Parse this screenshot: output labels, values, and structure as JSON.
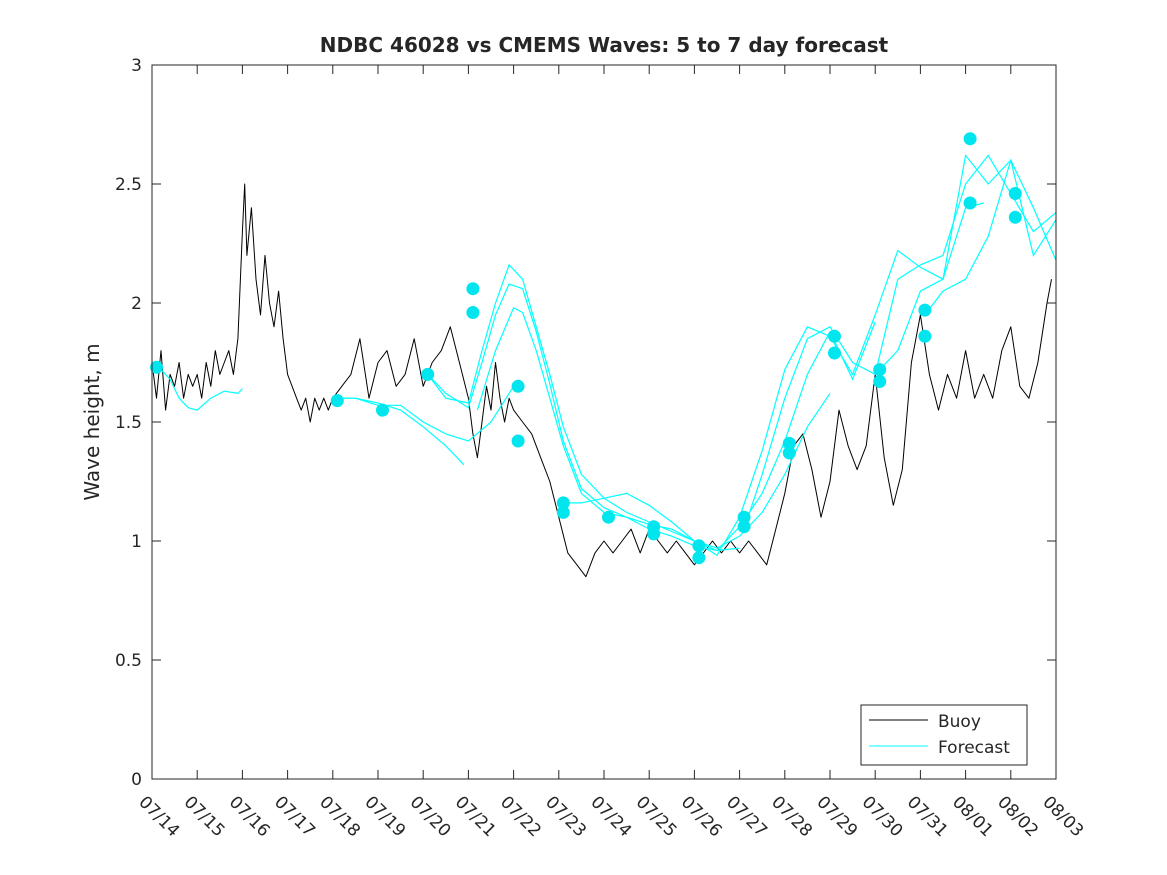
{
  "chart_data": {
    "type": "line",
    "title": "NDBC 46028 vs CMEMS Waves: 5 to 7 day forecast",
    "xlabel": "",
    "ylabel": "Wave height, m",
    "ylim": [
      0,
      3
    ],
    "xlim": [
      "07/14",
      "08/03"
    ],
    "grid": false,
    "legend_position": "bottom-right",
    "x_ticks": [
      "07/14",
      "07/15",
      "07/16",
      "07/17",
      "07/18",
      "07/19",
      "07/20",
      "07/21",
      "07/22",
      "07/23",
      "07/24",
      "07/25",
      "07/26",
      "07/27",
      "07/28",
      "07/29",
      "07/30",
      "07/31",
      "08/01",
      "08/02",
      "08/03"
    ],
    "y_ticks": [
      "0",
      "0.5",
      "1",
      "1.5",
      "2",
      "2.5",
      "3"
    ],
    "colors": {
      "buoy": "#000000",
      "forecast": "#00ffff",
      "marker": "#00e5ee"
    },
    "series": [
      {
        "name": "Buoy",
        "x_day": [
          0.0,
          0.1,
          0.2,
          0.3,
          0.4,
          0.5,
          0.6,
          0.7,
          0.8,
          0.9,
          1.0,
          1.1,
          1.2,
          1.3,
          1.4,
          1.5,
          1.6,
          1.7,
          1.8,
          1.9,
          2.0,
          2.05,
          2.1,
          2.2,
          2.3,
          2.4,
          2.5,
          2.6,
          2.7,
          2.8,
          2.9,
          3.0,
          3.1,
          3.2,
          3.3,
          3.4,
          3.5,
          3.6,
          3.7,
          3.8,
          3.9,
          4.0,
          4.2,
          4.4,
          4.6,
          4.8,
          5.0,
          5.2,
          5.4,
          5.6,
          5.8,
          6.0,
          6.2,
          6.4,
          6.6,
          6.8,
          7.0,
          7.1,
          7.2,
          7.3,
          7.4,
          7.5,
          7.6,
          7.7,
          7.8,
          7.9,
          8.0,
          8.2,
          8.4,
          8.6,
          8.8,
          9.0,
          9.2,
          9.4,
          9.6,
          9.8,
          10.0,
          10.2,
          10.4,
          10.6,
          10.8,
          11.0,
          11.2,
          11.4,
          11.6,
          11.8,
          12.0,
          12.2,
          12.4,
          12.6,
          12.8,
          13.0,
          13.2,
          13.4,
          13.6,
          13.8,
          14.0,
          14.2,
          14.4,
          14.6,
          14.8,
          15.0,
          15.2,
          15.4,
          15.6,
          15.8,
          16.0,
          16.2,
          16.4,
          16.6,
          16.8,
          17.0,
          17.2,
          17.4,
          17.6,
          17.8,
          18.0,
          18.2,
          18.4,
          18.6,
          18.8,
          19.0,
          19.2,
          19.4,
          19.6,
          19.8,
          19.9
        ],
        "values": [
          1.75,
          1.6,
          1.8,
          1.55,
          1.7,
          1.65,
          1.75,
          1.6,
          1.7,
          1.65,
          1.7,
          1.6,
          1.75,
          1.65,
          1.8,
          1.7,
          1.75,
          1.8,
          1.7,
          1.85,
          2.3,
          2.5,
          2.2,
          2.4,
          2.1,
          1.95,
          2.2,
          2.0,
          1.9,
          2.05,
          1.85,
          1.7,
          1.65,
          1.6,
          1.55,
          1.6,
          1.5,
          1.6,
          1.55,
          1.6,
          1.55,
          1.6,
          1.65,
          1.7,
          1.85,
          1.6,
          1.75,
          1.8,
          1.65,
          1.7,
          1.85,
          1.65,
          1.75,
          1.8,
          1.9,
          1.75,
          1.6,
          1.45,
          1.35,
          1.5,
          1.65,
          1.55,
          1.75,
          1.6,
          1.5,
          1.6,
          1.55,
          1.5,
          1.45,
          1.35,
          1.25,
          1.1,
          0.95,
          0.9,
          0.85,
          0.95,
          1.0,
          0.95,
          1.0,
          1.05,
          0.95,
          1.05,
          1.0,
          0.95,
          1.0,
          0.95,
          0.9,
          0.95,
          1.0,
          0.95,
          1.0,
          0.95,
          1.0,
          0.95,
          0.9,
          1.05,
          1.2,
          1.4,
          1.45,
          1.3,
          1.1,
          1.25,
          1.55,
          1.4,
          1.3,
          1.4,
          1.7,
          1.35,
          1.15,
          1.3,
          1.75,
          1.95,
          1.7,
          1.55,
          1.7,
          1.6,
          1.8,
          1.6,
          1.7,
          1.6,
          1.8,
          1.9,
          1.65,
          1.6,
          1.75,
          2.0,
          2.1
        ]
      },
      {
        "name": "Forecast",
        "segments": [
          {
            "x_day": [
              0.0,
              0.2,
              0.4,
              0.6,
              0.8,
              1.0,
              1.3,
              1.6,
              1.9,
              2.0
            ],
            "values": [
              1.73,
              1.72,
              1.68,
              1.6,
              1.56,
              1.55,
              1.6,
              1.63,
              1.62,
              1.64
            ]
          },
          {
            "x_day": [
              4.1,
              4.5,
              5.0,
              5.5,
              6.0,
              6.5,
              6.9
            ],
            "values": [
              1.6,
              1.6,
              1.58,
              1.55,
              1.48,
              1.4,
              1.32
            ]
          },
          {
            "x_day": [
              4.1,
              4.5,
              5.0,
              5.5,
              6.0,
              6.5,
              7.0,
              7.5,
              8.0
            ],
            "values": [
              1.6,
              1.6,
              1.57,
              1.57,
              1.5,
              1.45,
              1.42,
              1.5,
              1.65
            ]
          },
          {
            "x_day": [
              6.1,
              6.5,
              7.0,
              7.3,
              7.6,
              7.9,
              8.2,
              8.5,
              8.8,
              9.1,
              9.5,
              10.0,
              10.5,
              11.0,
              11.5,
              12.0,
              12.5,
              13.0
            ],
            "values": [
              1.7,
              1.62,
              1.56,
              1.75,
              1.95,
              2.08,
              2.06,
              1.88,
              1.66,
              1.42,
              1.22,
              1.14,
              1.1,
              1.07,
              1.05,
              1.0,
              0.96,
              0.97
            ]
          },
          {
            "x_day": [
              6.1,
              6.5,
              7.0,
              7.3,
              7.6,
              7.9,
              8.2,
              8.5,
              8.8,
              9.1,
              9.5,
              10.0,
              10.5,
              11.0,
              11.5,
              12.0,
              12.5,
              13.0,
              13.5,
              14.0,
              14.5,
              15.0
            ],
            "values": [
              1.7,
              1.6,
              1.58,
              1.8,
              2.0,
              2.16,
              2.1,
              1.9,
              1.7,
              1.48,
              1.28,
              1.18,
              1.12,
              1.08,
              1.04,
              1.0,
              0.97,
              1.02,
              1.12,
              1.28,
              1.48,
              1.62
            ]
          },
          {
            "x_day": [
              7.2,
              7.6,
              8.0,
              8.2,
              8.5,
              8.8,
              9.1,
              9.5,
              10.0,
              10.5,
              11.0,
              11.5,
              12.0,
              12.5,
              13.0,
              13.5,
              14.0,
              14.5,
              15.0,
              15.5,
              16.0
            ],
            "values": [
              1.55,
              1.8,
              1.98,
              1.96,
              1.8,
              1.6,
              1.4,
              1.2,
              1.12,
              1.1,
              1.05,
              1.02,
              0.98,
              0.96,
              1.06,
              1.2,
              1.42,
              1.7,
              1.88,
              1.68,
              1.92
            ]
          },
          {
            "x_day": [
              9.1,
              9.5,
              10.0,
              10.5,
              11.0,
              11.5,
              12.0,
              12.5,
              13.0,
              13.5,
              14.0,
              14.5,
              15.0,
              15.5,
              16.0,
              16.5,
              17.0,
              17.5,
              18.0,
              18.4
            ],
            "values": [
              1.16,
              1.16,
              1.18,
              1.2,
              1.15,
              1.08,
              1.0,
              0.94,
              1.1,
              1.38,
              1.72,
              1.9,
              1.86,
              1.7,
              1.95,
              2.22,
              2.15,
              2.1,
              2.4,
              2.42
            ]
          },
          {
            "x_day": [
              13.1,
              13.5,
              14.0,
              14.5,
              15.0,
              15.5,
              16.0,
              16.5,
              17.0,
              17.5,
              18.0,
              18.5,
              19.0,
              19.5,
              20.0
            ],
            "values": [
              1.05,
              1.28,
              1.6,
              1.85,
              1.9,
              1.75,
              1.7,
              2.1,
              2.16,
              2.2,
              2.5,
              2.62,
              2.46,
              2.3,
              2.38
            ]
          },
          {
            "x_day": [
              16.1,
              16.5,
              17.0,
              17.5,
              18.0,
              18.5,
              19.0,
              19.5,
              20.0
            ],
            "values": [
              1.72,
              1.8,
              2.05,
              2.1,
              2.62,
              2.5,
              2.6,
              2.2,
              2.35
            ]
          },
          {
            "x_day": [
              17.1,
              17.5,
              18.0,
              18.5,
              19.0,
              19.5,
              20.0
            ],
            "values": [
              1.95,
              2.05,
              2.1,
              2.28,
              2.6,
              2.4,
              2.18
            ]
          }
        ]
      }
    ],
    "forecast_markers": {
      "x_day": [
        0.1,
        4.1,
        5.1,
        6.1,
        7.1,
        7.1,
        8.1,
        8.1,
        9.1,
        9.1,
        10.1,
        11.1,
        11.1,
        12.1,
        12.1,
        13.1,
        13.1,
        14.1,
        14.1,
        15.1,
        15.1,
        16.1,
        16.1,
        17.1,
        17.1,
        18.1,
        18.1,
        19.1,
        19.1
      ],
      "values": [
        1.73,
        1.59,
        1.55,
        1.7,
        2.06,
        1.96,
        1.65,
        1.42,
        1.16,
        1.12,
        1.1,
        1.06,
        1.03,
        0.98,
        0.93,
        1.1,
        1.06,
        1.41,
        1.37,
        1.86,
        1.79,
        1.72,
        1.67,
        1.97,
        1.86,
        2.69,
        2.42,
        2.46,
        2.36
      ]
    }
  }
}
